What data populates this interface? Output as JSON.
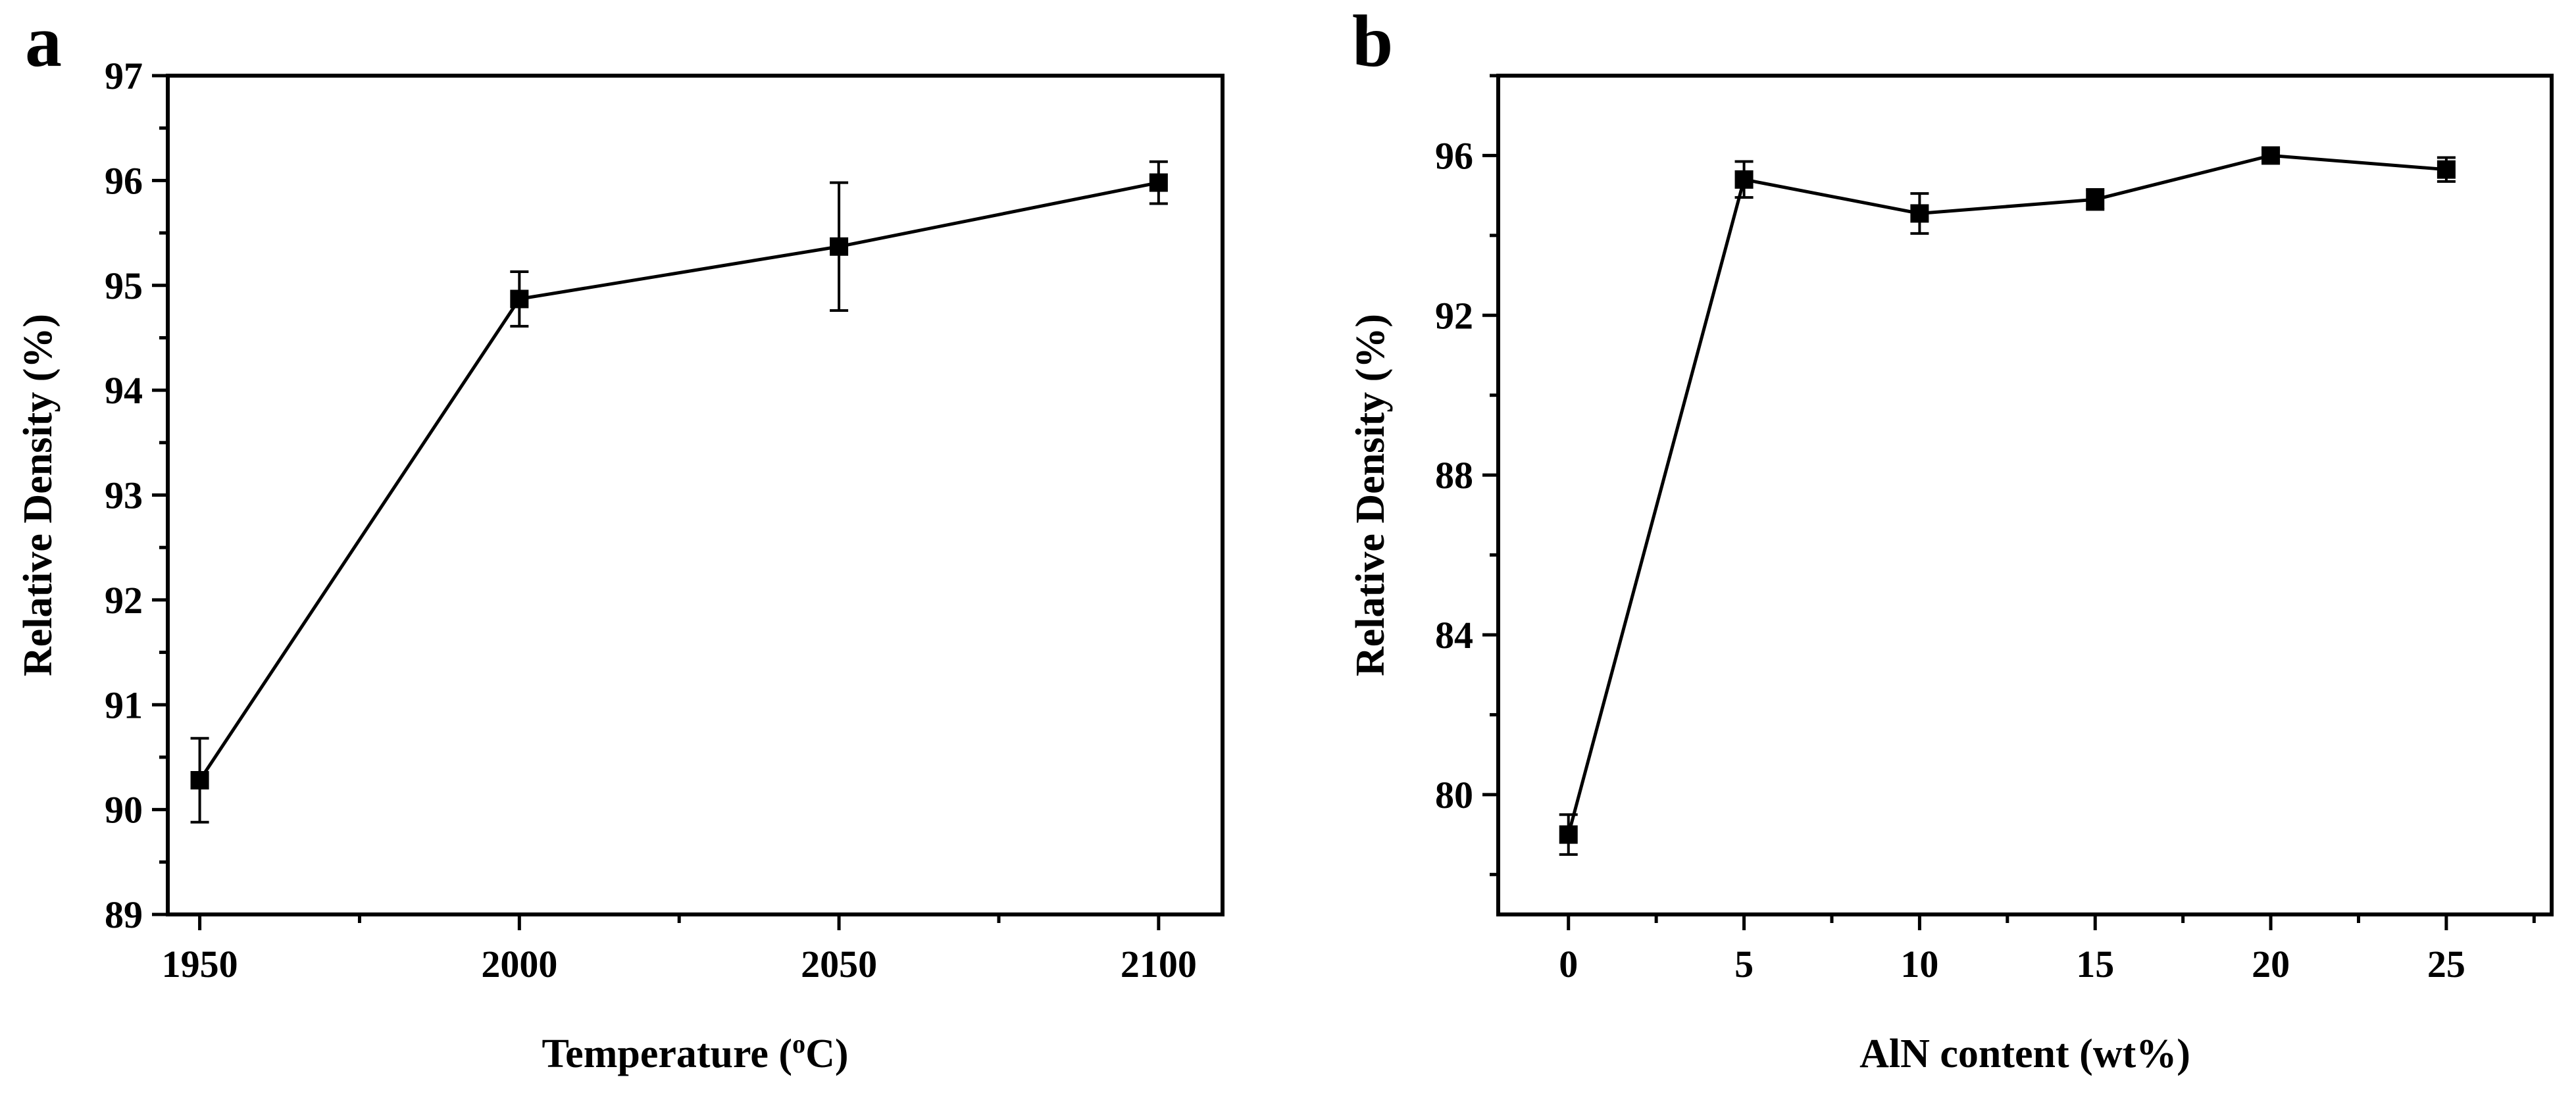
{
  "chart_data": [
    {
      "panel": "a",
      "type": "line",
      "xlabel": "Temperature (oC)",
      "xlabel_main": "Temperature (",
      "xlabel_sup": "o",
      "xlabel_tail": "C)",
      "ylabel": "Relative Density (%)",
      "x": [
        1950,
        2000,
        2050,
        2100
      ],
      "y": [
        90.28,
        94.87,
        95.37,
        95.98
      ],
      "yerr": [
        0.4,
        0.26,
        0.61,
        0.2
      ],
      "xlim": [
        1945,
        2110
      ],
      "ylim": [
        89,
        97
      ],
      "xticks": [
        1950,
        2000,
        2050,
        2100
      ],
      "xtick_labels": [
        "1950",
        "2000",
        "2050",
        "2100"
      ],
      "yticks": [
        89,
        90,
        91,
        92,
        93,
        94,
        95,
        96,
        97
      ],
      "ytick_labels": [
        "89",
        "90",
        "91",
        "92",
        "93",
        "94",
        "95",
        "96",
        "97"
      ],
      "x_minor_step": 25,
      "y_minor_step": 0.5
    },
    {
      "panel": "b",
      "type": "line",
      "xlabel": "AlN content (wt%)",
      "ylabel": "Relative Density (%)",
      "x": [
        0,
        5,
        10,
        15,
        20,
        25
      ],
      "y": [
        79.0,
        95.4,
        94.55,
        94.9,
        96.0,
        95.65
      ],
      "yerr": [
        0.5,
        0.45,
        0.5,
        0.25,
        0.15,
        0.3
      ],
      "xlim": [
        -2,
        28
      ],
      "ylim": [
        77,
        98
      ],
      "xticks": [
        0,
        5,
        10,
        15,
        20,
        25
      ],
      "xtick_labels": [
        "0",
        "5",
        "10",
        "15",
        "20",
        "25"
      ],
      "yticks": [
        80,
        84,
        88,
        92,
        96
      ],
      "ytick_labels": [
        "80",
        "84",
        "88",
        "92",
        "96"
      ],
      "x_minor_step": 2.5,
      "y_minor_step": 2
    }
  ]
}
